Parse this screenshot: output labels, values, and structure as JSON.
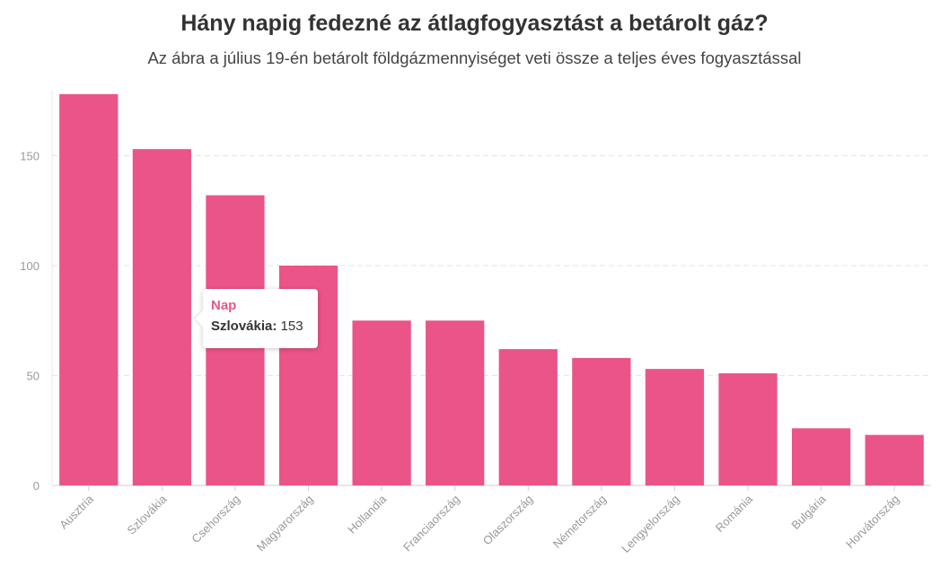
{
  "title": "Hány napig fedezné az átlagfogyasztást a betárolt gáz?",
  "subtitle": "Az ábra a július 19-én betárolt földgázmennyiséget veti össze a teljes éves fogyasztással",
  "colors": {
    "bar": "#ea5489",
    "accent": "#e8568a",
    "grid": "#e4e4e4",
    "axis_text": "#999999"
  },
  "tooltip": {
    "series": "Nap",
    "label": "Szlovákia:",
    "value": "153"
  },
  "chart_data": {
    "type": "bar",
    "title": "Hány napig fedezné az átlagfogyasztást a betárolt gáz?",
    "subtitle": "Az ábra a július 19-én betárolt földgázmennyiséget veti össze a teljes éves fogyasztással",
    "categories": [
      "Ausztria",
      "Szlovákia",
      "Csehország",
      "Magyarország",
      "Hollandia",
      "Franciaország",
      "Olaszország",
      "Németország",
      "Lengyelország",
      "Románia",
      "Bulgária",
      "Horvátország"
    ],
    "series": [
      {
        "name": "Nap",
        "values": [
          178,
          153,
          132,
          100,
          75,
          75,
          62,
          58,
          53,
          51,
          26,
          23
        ]
      }
    ],
    "yticks": [
      0,
      50,
      100,
      150
    ],
    "ylim": [
      0,
      180
    ],
    "xlabel": "",
    "ylabel": "",
    "grid": true,
    "legend": "none"
  }
}
